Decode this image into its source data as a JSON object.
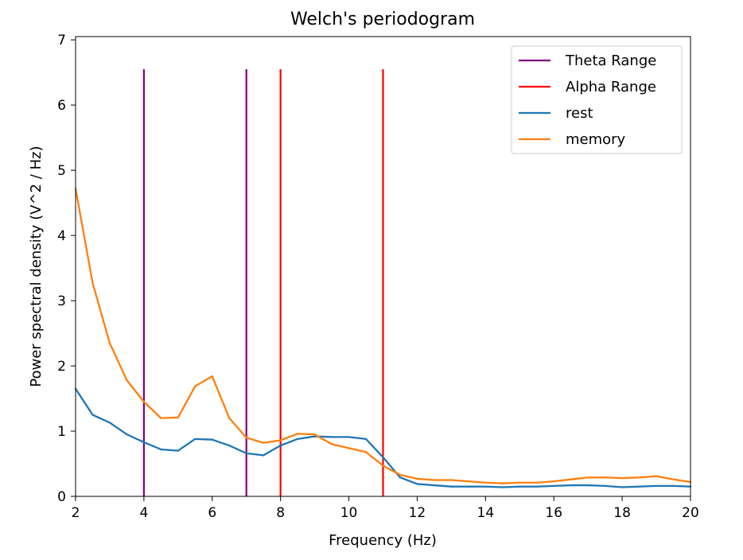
{
  "chart_data": {
    "type": "line",
    "title": "Welch's periodogram",
    "xlabel": "Frequency (Hz)",
    "ylabel": "Power spectral density (V^2 / Hz)",
    "xlim": [
      2,
      20
    ],
    "ylim": [
      0,
      7.05
    ],
    "xticks": [
      2,
      4,
      6,
      8,
      10,
      12,
      14,
      16,
      18,
      20
    ],
    "yticks": [
      0,
      1,
      2,
      3,
      4,
      5,
      6,
      7
    ],
    "legend_position": "top-right",
    "vlines": [
      {
        "name": "Theta Range",
        "color": "#800080",
        "x": [
          4,
          7
        ],
        "ymin": 0,
        "ymax": 6.55
      },
      {
        "name": "Alpha Range",
        "color": "#ff0000",
        "x": [
          8,
          11
        ],
        "ymin": 0,
        "ymax": 6.55
      }
    ],
    "x": [
      2,
      2.5,
      3,
      3.5,
      4,
      4.5,
      5,
      5.5,
      6,
      6.5,
      7,
      7.5,
      8,
      8.5,
      9,
      9.5,
      10,
      10.5,
      11,
      11.5,
      12,
      12.5,
      13,
      13.5,
      14,
      14.5,
      15,
      15.5,
      16,
      16.5,
      17,
      17.5,
      18,
      18.5,
      19,
      19.5,
      20
    ],
    "series": [
      {
        "name": "rest",
        "color": "#1f77b4",
        "values": [
          1.65,
          1.25,
          1.13,
          0.95,
          0.83,
          0.72,
          0.7,
          0.88,
          0.87,
          0.78,
          0.66,
          0.63,
          0.78,
          0.88,
          0.92,
          0.91,
          0.91,
          0.88,
          0.6,
          0.29,
          0.19,
          0.17,
          0.15,
          0.15,
          0.15,
          0.14,
          0.15,
          0.15,
          0.16,
          0.17,
          0.17,
          0.16,
          0.14,
          0.15,
          0.16,
          0.16,
          0.15
        ]
      },
      {
        "name": "memory",
        "color": "#ff7f0e",
        "values": [
          4.72,
          3.27,
          2.35,
          1.78,
          1.45,
          1.2,
          1.21,
          1.69,
          1.84,
          1.2,
          0.9,
          0.82,
          0.86,
          0.96,
          0.95,
          0.8,
          0.74,
          0.68,
          0.47,
          0.33,
          0.27,
          0.25,
          0.25,
          0.23,
          0.21,
          0.2,
          0.21,
          0.21,
          0.23,
          0.26,
          0.29,
          0.29,
          0.28,
          0.29,
          0.31,
          0.26,
          0.22
        ]
      }
    ]
  }
}
